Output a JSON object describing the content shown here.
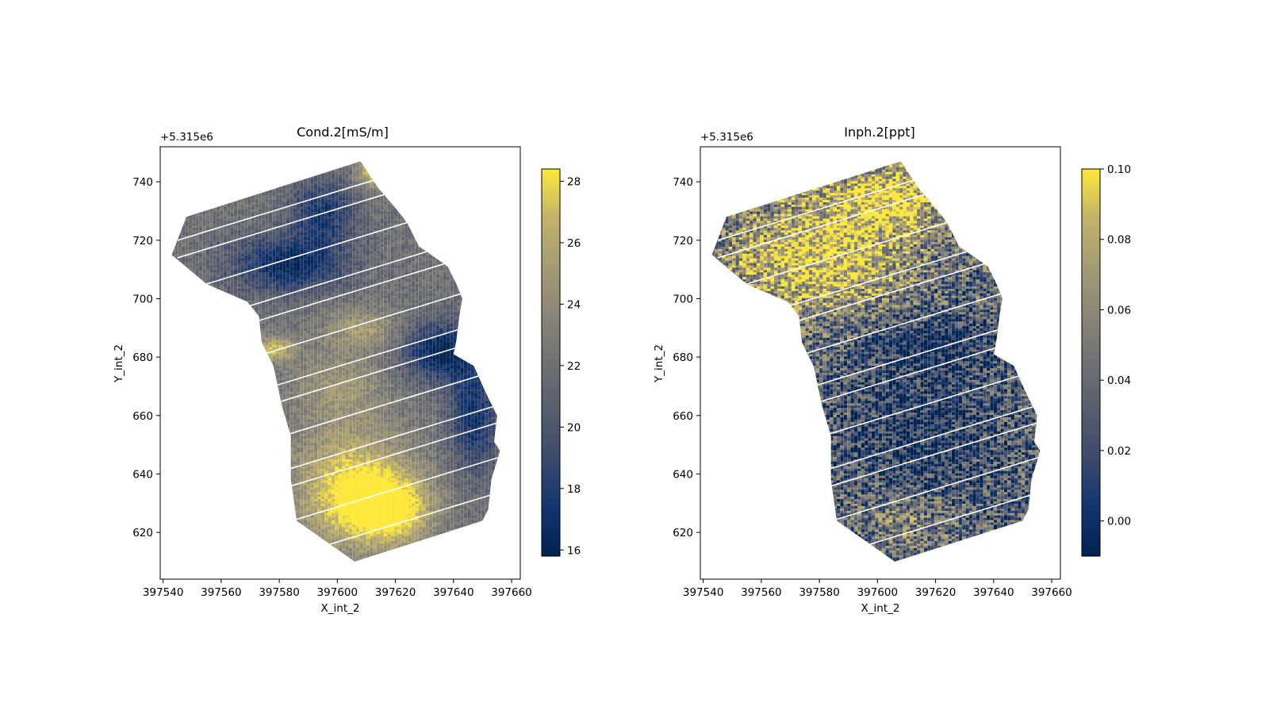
{
  "figure": {
    "background": "#ffffff"
  },
  "chart_data": [
    {
      "type": "scatter",
      "title": "Cond.2[mS/m]",
      "xlabel": "X_int_2",
      "ylabel": "Y_int_2",
      "y_offset_label": "+5.315e6",
      "xlim": [
        397539,
        397663
      ],
      "ylim": [
        604,
        752
      ],
      "x_ticks": [
        397540,
        397560,
        397580,
        397600,
        397620,
        397640,
        397660
      ],
      "x_tick_labels": [
        "397540",
        "397560",
        "397580",
        "397600",
        "397620",
        "397640",
        "397660"
      ],
      "y_ticks": [
        620,
        640,
        660,
        680,
        700,
        720,
        740
      ],
      "y_tick_labels": [
        "620",
        "640",
        "660",
        "680",
        "700",
        "720",
        "740"
      ],
      "colormap": "cividis",
      "colorbar": {
        "min": 15.8,
        "max": 28.4,
        "ticks": [
          16,
          18,
          20,
          22,
          24,
          26,
          28
        ],
        "tick_labels": [
          "16",
          "18",
          "20",
          "22",
          "24",
          "26",
          "28"
        ]
      },
      "survey_outline": [
        [
          397548,
          728
        ],
        [
          397608,
          747
        ],
        [
          397614,
          738
        ],
        [
          397620,
          731
        ],
        [
          397624,
          726
        ],
        [
          397628,
          718
        ],
        [
          397638,
          711
        ],
        [
          397641,
          705
        ],
        [
          397643,
          700
        ],
        [
          397642,
          694
        ],
        [
          397641,
          686
        ],
        [
          397640,
          681
        ],
        [
          397647,
          677
        ],
        [
          397651,
          668
        ],
        [
          397655,
          660
        ],
        [
          397654,
          651
        ],
        [
          397656,
          648
        ],
        [
          397653,
          638
        ],
        [
          397652,
          628
        ],
        [
          397650,
          624
        ],
        [
          397606,
          610
        ],
        [
          397586,
          624
        ],
        [
          397584,
          638
        ],
        [
          397584,
          653
        ],
        [
          397581,
          663
        ],
        [
          397578,
          677
        ],
        [
          397574,
          685
        ],
        [
          397573,
          694
        ],
        [
          397569,
          699
        ],
        [
          397555,
          705
        ],
        [
          397543,
          715
        ]
      ],
      "features": [
        {
          "x": 397605,
          "y": 635,
          "sx": 14,
          "sy": 14,
          "value": 28.3
        },
        {
          "x": 397618,
          "y": 628,
          "sx": 10,
          "sy": 8,
          "value": 28.0
        },
        {
          "x": 397600,
          "y": 670,
          "sx": 12,
          "sy": 9,
          "value": 24.5
        },
        {
          "x": 397635,
          "y": 682,
          "sx": 9,
          "sy": 7,
          "value": 16.0
        },
        {
          "x": 397647,
          "y": 660,
          "sx": 6,
          "sy": 14,
          "value": 17.0
        },
        {
          "x": 397583,
          "y": 712,
          "sx": 14,
          "sy": 7,
          "value": 16.5
        },
        {
          "x": 397595,
          "y": 730,
          "sx": 8,
          "sy": 8,
          "value": 17.5
        },
        {
          "x": 397608,
          "y": 690,
          "sx": 9,
          "sy": 5,
          "value": 25.0
        },
        {
          "x": 397612,
          "y": 744,
          "sx": 4,
          "sy": 4,
          "value": 27.5
        },
        {
          "x": 397578,
          "y": 683,
          "sx": 5,
          "sy": 3,
          "value": 27.0
        }
      ],
      "base_value": 22.0,
      "noise": 1.2
    },
    {
      "type": "scatter",
      "title": "Inph.2[ppt]",
      "xlabel": "X_int_2",
      "ylabel": "Y_int_2",
      "y_offset_label": "+5.315e6",
      "xlim": [
        397539,
        397663
      ],
      "ylim": [
        604,
        752
      ],
      "x_ticks": [
        397540,
        397560,
        397580,
        397600,
        397620,
        397640,
        397660
      ],
      "x_tick_labels": [
        "397540",
        "397560",
        "397580",
        "397600",
        "397620",
        "397640",
        "397660"
      ],
      "y_ticks": [
        620,
        640,
        660,
        680,
        700,
        720,
        740
      ],
      "y_tick_labels": [
        "620",
        "640",
        "660",
        "680",
        "700",
        "720",
        "740"
      ],
      "colormap": "cividis",
      "colorbar": {
        "min": -0.01,
        "max": 0.1,
        "ticks": [
          0.0,
          0.02,
          0.04,
          0.06,
          0.08,
          0.1
        ],
        "tick_labels": [
          "0.00",
          "0.02",
          "0.04",
          "0.06",
          "0.08",
          "0.10"
        ]
      },
      "survey_outline": [
        [
          397548,
          728
        ],
        [
          397608,
          747
        ],
        [
          397614,
          738
        ],
        [
          397620,
          731
        ],
        [
          397624,
          726
        ],
        [
          397628,
          718
        ],
        [
          397638,
          711
        ],
        [
          397641,
          705
        ],
        [
          397643,
          700
        ],
        [
          397642,
          694
        ],
        [
          397641,
          686
        ],
        [
          397640,
          681
        ],
        [
          397647,
          677
        ],
        [
          397651,
          668
        ],
        [
          397655,
          660
        ],
        [
          397654,
          651
        ],
        [
          397656,
          648
        ],
        [
          397653,
          638
        ],
        [
          397652,
          628
        ],
        [
          397650,
          624
        ],
        [
          397606,
          610
        ],
        [
          397586,
          624
        ],
        [
          397584,
          638
        ],
        [
          397584,
          653
        ],
        [
          397581,
          663
        ],
        [
          397578,
          677
        ],
        [
          397574,
          685
        ],
        [
          397573,
          694
        ],
        [
          397569,
          699
        ],
        [
          397555,
          705
        ],
        [
          397543,
          715
        ]
      ],
      "features": [
        {
          "x": 397580,
          "y": 715,
          "sx": 22,
          "sy": 14,
          "value": 0.095
        },
        {
          "x": 397605,
          "y": 735,
          "sx": 14,
          "sy": 8,
          "value": 0.09
        },
        {
          "x": 397615,
          "y": 655,
          "sx": 20,
          "sy": 20,
          "value": 0.005
        },
        {
          "x": 397620,
          "y": 685,
          "sx": 14,
          "sy": 6,
          "value": 0.0
        },
        {
          "x": 397610,
          "y": 625,
          "sx": 12,
          "sy": 8,
          "value": 0.06
        }
      ],
      "base_value": 0.035,
      "noise": 0.045
    }
  ]
}
